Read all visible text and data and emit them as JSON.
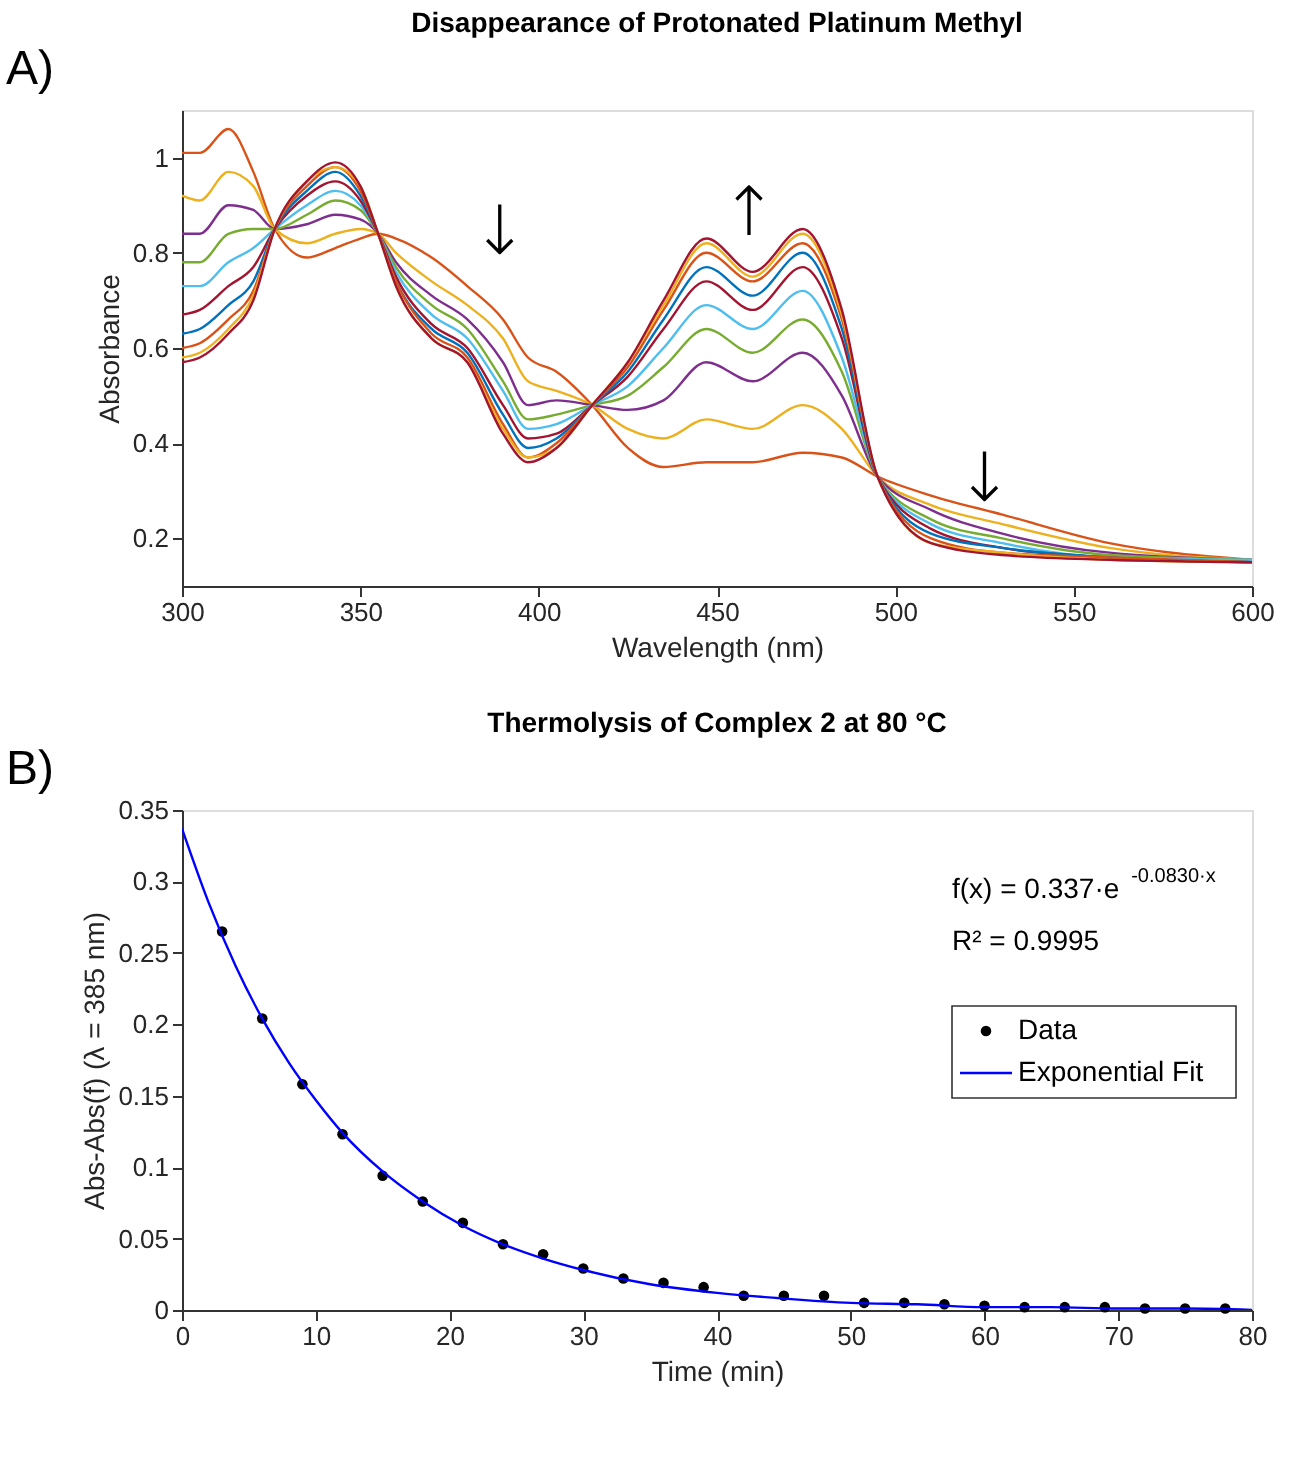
{
  "chart_data": [
    {
      "type": "line",
      "title": "Disappearance of Protonated Platinum Methyl",
      "xlabel": "Wavelength (nm)",
      "ylabel": "Absorbance",
      "xlim": [
        300,
        600
      ],
      "xticks": [
        300,
        350,
        400,
        450,
        500,
        550,
        600
      ],
      "ylim": [
        0.1,
        1.1
      ],
      "yticks": [
        0.2,
        0.4,
        0.6,
        0.8,
        1
      ],
      "grid": false,
      "legend": false,
      "x": [
        300,
        305,
        313,
        320,
        326,
        335,
        343,
        350,
        355,
        360,
        370,
        380,
        390,
        397,
        405,
        415,
        425,
        435,
        447,
        460,
        474,
        485,
        495,
        510,
        530,
        560,
        600
      ],
      "series": [
        {
          "color": "#d95319",
          "values": [
            1.01,
            1.01,
            1.06,
            0.97,
            0.85,
            0.79,
            0.81,
            0.83,
            0.84,
            0.83,
            0.79,
            0.73,
            0.66,
            0.58,
            0.55,
            0.48,
            0.39,
            0.35,
            0.36,
            0.36,
            0.38,
            0.37,
            0.33,
            0.29,
            0.25,
            0.19,
            0.155
          ]
        },
        {
          "color": "#edb120",
          "values": [
            0.92,
            0.91,
            0.97,
            0.94,
            0.85,
            0.82,
            0.84,
            0.85,
            0.84,
            0.8,
            0.74,
            0.69,
            0.62,
            0.53,
            0.51,
            0.48,
            0.43,
            0.41,
            0.45,
            0.43,
            0.48,
            0.43,
            0.33,
            0.27,
            0.23,
            0.18,
            0.155
          ]
        },
        {
          "color": "#7e2f8e",
          "values": [
            0.84,
            0.84,
            0.9,
            0.89,
            0.85,
            0.86,
            0.88,
            0.87,
            0.84,
            0.78,
            0.71,
            0.66,
            0.57,
            0.48,
            0.49,
            0.48,
            0.47,
            0.49,
            0.57,
            0.53,
            0.59,
            0.5,
            0.33,
            0.26,
            0.21,
            0.17,
            0.155
          ]
        },
        {
          "color": "#77ac30",
          "values": [
            0.78,
            0.78,
            0.84,
            0.85,
            0.85,
            0.88,
            0.91,
            0.89,
            0.84,
            0.77,
            0.69,
            0.64,
            0.53,
            0.45,
            0.46,
            0.48,
            0.5,
            0.56,
            0.64,
            0.59,
            0.66,
            0.55,
            0.33,
            0.24,
            0.2,
            0.165,
            0.155
          ]
        },
        {
          "color": "#4dbeee",
          "values": [
            0.73,
            0.73,
            0.78,
            0.81,
            0.85,
            0.9,
            0.93,
            0.9,
            0.84,
            0.76,
            0.67,
            0.62,
            0.51,
            0.43,
            0.44,
            0.48,
            0.52,
            0.6,
            0.69,
            0.64,
            0.72,
            0.58,
            0.33,
            0.23,
            0.19,
            0.16,
            0.155
          ]
        },
        {
          "color": "#a2142f",
          "values": [
            0.67,
            0.68,
            0.73,
            0.77,
            0.85,
            0.92,
            0.95,
            0.91,
            0.84,
            0.75,
            0.65,
            0.6,
            0.48,
            0.41,
            0.42,
            0.48,
            0.54,
            0.64,
            0.74,
            0.68,
            0.77,
            0.62,
            0.33,
            0.22,
            0.18,
            0.16,
            0.15
          ]
        },
        {
          "color": "#0072bd",
          "values": [
            0.63,
            0.64,
            0.69,
            0.74,
            0.85,
            0.93,
            0.97,
            0.92,
            0.84,
            0.74,
            0.64,
            0.59,
            0.46,
            0.39,
            0.41,
            0.48,
            0.55,
            0.66,
            0.77,
            0.71,
            0.8,
            0.64,
            0.33,
            0.21,
            0.18,
            0.16,
            0.15
          ]
        },
        {
          "color": "#d95319",
          "values": [
            0.6,
            0.61,
            0.66,
            0.72,
            0.85,
            0.94,
            0.98,
            0.93,
            0.84,
            0.74,
            0.63,
            0.58,
            0.44,
            0.37,
            0.4,
            0.48,
            0.56,
            0.68,
            0.8,
            0.74,
            0.82,
            0.66,
            0.33,
            0.2,
            0.17,
            0.16,
            0.15
          ]
        },
        {
          "color": "#edb120",
          "values": [
            0.58,
            0.59,
            0.64,
            0.71,
            0.85,
            0.95,
            0.98,
            0.94,
            0.84,
            0.73,
            0.62,
            0.57,
            0.43,
            0.37,
            0.39,
            0.48,
            0.57,
            0.69,
            0.82,
            0.75,
            0.84,
            0.67,
            0.33,
            0.19,
            0.17,
            0.155,
            0.15
          ]
        },
        {
          "color": "#a2142f",
          "values": [
            0.57,
            0.58,
            0.63,
            0.7,
            0.85,
            0.95,
            0.99,
            0.94,
            0.84,
            0.73,
            0.62,
            0.57,
            0.42,
            0.36,
            0.39,
            0.48,
            0.57,
            0.7,
            0.83,
            0.76,
            0.85,
            0.68,
            0.33,
            0.19,
            0.165,
            0.155,
            0.15
          ]
        }
      ],
      "annotations": [
        "A)",
        "↓",
        "↑",
        "↓"
      ]
    },
    {
      "type": "line",
      "title": "Thermolysis of Complex 2 at 80 °C",
      "xlabel": "Time (min)",
      "ylabel": "Abs-Abs(f) (λ = 385 nm)",
      "xlim": [
        0,
        80
      ],
      "xticks": [
        0,
        10,
        20,
        30,
        40,
        50,
        60,
        70,
        80
      ],
      "ylim": [
        0,
        0.35
      ],
      "yticks": [
        0,
        0.05,
        0.1,
        0.15,
        0.2,
        0.25,
        0.3,
        0.35
      ],
      "grid": false,
      "legend": "top right",
      "series": [
        {
          "name": "Data",
          "type": "scatter",
          "marker": "circle",
          "color": "#000000",
          "x": [
            3,
            6,
            9,
            12,
            15,
            18,
            21,
            24,
            27,
            30,
            33,
            36,
            39,
            42,
            45,
            48,
            51,
            54,
            57,
            60,
            63,
            66,
            69,
            72,
            75,
            78
          ],
          "values": [
            0.265,
            0.204,
            0.158,
            0.123,
            0.094,
            0.076,
            0.061,
            0.046,
            0.039,
            0.029,
            0.022,
            0.019,
            0.016,
            0.01,
            0.01,
            0.01,
            0.005,
            0.005,
            0.004,
            0.003,
            0.002,
            0.002,
            0.002,
            0.001,
            0.001,
            0.001
          ]
        },
        {
          "name": "Exponential Fit",
          "type": "line",
          "color": "#0000ff",
          "x": [
            0,
            2,
            4,
            6,
            8,
            10,
            12,
            15,
            18,
            21,
            24,
            27,
            30,
            35,
            40,
            45,
            50,
            55,
            60,
            65,
            70,
            75,
            80
          ],
          "values": [
            0.337,
            0.285,
            0.241,
            0.204,
            0.173,
            0.147,
            0.124,
            0.097,
            0.076,
            0.059,
            0.046,
            0.036,
            0.028,
            0.018,
            0.012,
            0.008,
            0.005,
            0.004,
            0.002,
            0.002,
            0.001,
            0.001,
            0
          ]
        }
      ],
      "annotations": [
        "B)",
        "f(x) = 0.337·e$^{-0.0830·x}$",
        "R² = 0.9995"
      ]
    }
  ]
}
